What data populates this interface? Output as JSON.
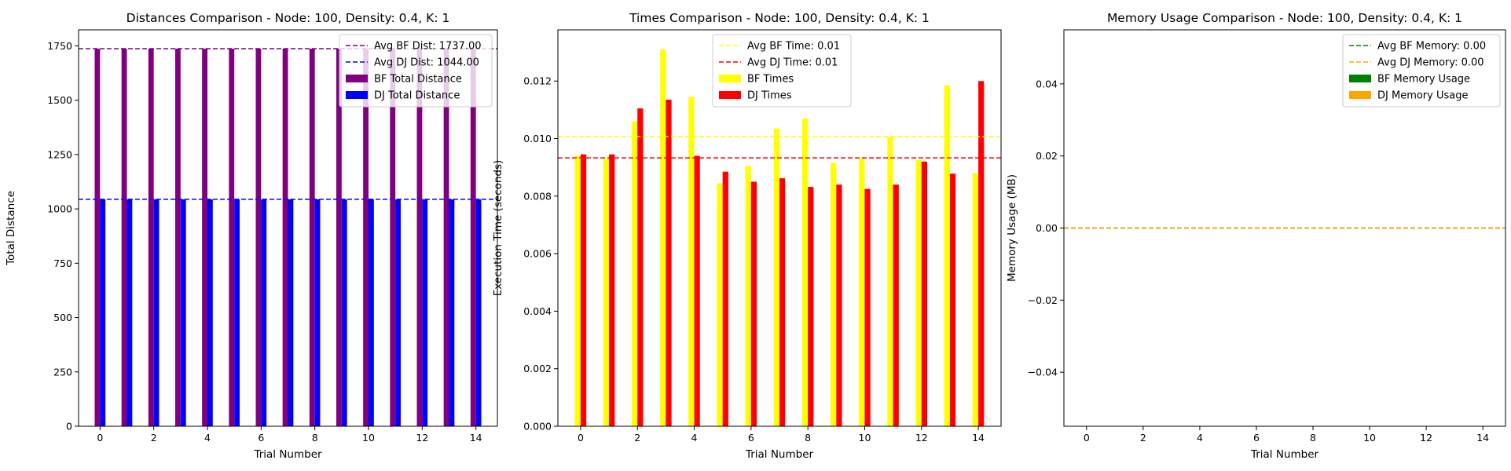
{
  "chart_data": [
    {
      "type": "bar",
      "title": "Distances Comparison - Node: 100, Density: 0.4, K: 1",
      "xlabel": "Trial Number",
      "ylabel": "Total Distance",
      "categories": [
        0,
        1,
        2,
        3,
        4,
        5,
        6,
        7,
        8,
        9,
        10,
        11,
        12,
        13,
        14
      ],
      "xlim": [
        -0.8,
        14.8
      ],
      "ylim": [
        0,
        1823.85
      ],
      "xticks": [
        0,
        2,
        4,
        6,
        8,
        10,
        12,
        14
      ],
      "yticks": [
        0,
        250,
        500,
        750,
        1000,
        1250,
        1500,
        1750
      ],
      "ytick_labels": [
        "0",
        "250",
        "500",
        "750",
        "1000",
        "1250",
        "1500",
        "1750"
      ],
      "series": [
        {
          "name": "BF Total Distance",
          "color": "#800080",
          "values": [
            1737,
            1737,
            1737,
            1737,
            1737,
            1737,
            1737,
            1737,
            1737,
            1737,
            1737,
            1737,
            1737,
            1737,
            1737
          ]
        },
        {
          "name": "DJ Total Distance",
          "color": "#0000ff",
          "values": [
            1044,
            1044,
            1044,
            1044,
            1044,
            1044,
            1044,
            1044,
            1044,
            1044,
            1044,
            1044,
            1044,
            1044,
            1044
          ]
        }
      ],
      "hlines": [
        {
          "name": "Avg BF Dist: 1737.00",
          "value": 1737,
          "color": "#800080"
        },
        {
          "name": "Avg DJ Dist: 1044.00",
          "value": 1044,
          "color": "#0000ff"
        }
      ],
      "legend_position": "top-right",
      "grid": false
    },
    {
      "type": "bar",
      "title": "Times Comparison - Node: 100, Density: 0.4, K: 1",
      "xlabel": "Trial Number",
      "ylabel": "Execution Time (seconds)",
      "categories": [
        0,
        1,
        2,
        3,
        4,
        5,
        6,
        7,
        8,
        9,
        10,
        11,
        12,
        13,
        14
      ],
      "xlim": [
        -0.8,
        14.8
      ],
      "ylim": [
        0,
        0.01378
      ],
      "xticks": [
        0,
        2,
        4,
        6,
        8,
        10,
        12,
        14
      ],
      "yticks": [
        0,
        0.002,
        0.004,
        0.006,
        0.008,
        0.01,
        0.012
      ],
      "ytick_labels": [
        "0.000",
        "0.002",
        "0.004",
        "0.006",
        "0.008",
        "0.010",
        "0.012"
      ],
      "series": [
        {
          "name": "BF Times",
          "color": "#ffff00",
          "values": [
            0.0094,
            0.0093,
            0.0106,
            0.0131,
            0.01145,
            0.00845,
            0.00905,
            0.01035,
            0.0107,
            0.00915,
            0.0093,
            0.01005,
            0.00925,
            0.01185,
            0.0088
          ]
        },
        {
          "name": "DJ Times",
          "color": "#ff0000",
          "values": [
            0.00945,
            0.00945,
            0.01105,
            0.01135,
            0.0094,
            0.00885,
            0.0085,
            0.00862,
            0.00832,
            0.0084,
            0.00825,
            0.0084,
            0.0092,
            0.00878,
            0.012
          ]
        }
      ],
      "hlines": [
        {
          "name": "Avg BF Time: 0.01",
          "value": 0.01007,
          "color": "#ffff00"
        },
        {
          "name": "Avg DJ Time: 0.01",
          "value": 0.00933,
          "color": "#ff0000"
        }
      ],
      "legend_position": "top-center",
      "grid": false
    },
    {
      "type": "bar",
      "title": "Memory Usage Comparison - Node: 100, Density: 0.4, K: 1",
      "xlabel": "Trial Number",
      "ylabel": "Memory Usage (MB)",
      "categories": [
        0,
        1,
        2,
        3,
        4,
        5,
        6,
        7,
        8,
        9,
        10,
        11,
        12,
        13,
        14
      ],
      "xlim": [
        -0.8,
        14.8
      ],
      "ylim": [
        -0.055,
        0.055
      ],
      "xticks": [
        0,
        2,
        4,
        6,
        8,
        10,
        12,
        14
      ],
      "yticks": [
        -0.04,
        -0.02,
        0,
        0.02,
        0.04
      ],
      "ytick_labels": [
        "−0.04",
        "−0.02",
        "0.00",
        "0.02",
        "0.04"
      ],
      "series": [
        {
          "name": "BF Memory Usage",
          "color": "#008000",
          "values": [
            0,
            0,
            0,
            0,
            0,
            0,
            0,
            0,
            0,
            0,
            0,
            0,
            0,
            0,
            0
          ]
        },
        {
          "name": "DJ Memory Usage",
          "color": "#ffa500",
          "values": [
            0,
            0,
            0,
            0,
            0,
            0,
            0,
            0,
            0,
            0,
            0,
            0,
            0,
            0,
            0
          ]
        }
      ],
      "hlines": [
        {
          "name": "Avg BF Memory: 0.00",
          "value": 0,
          "color": "#008000"
        },
        {
          "name": "Avg DJ Memory: 0.00",
          "value": 0,
          "color": "#ffa500"
        }
      ],
      "legend_position": "top-right",
      "grid": false
    }
  ]
}
